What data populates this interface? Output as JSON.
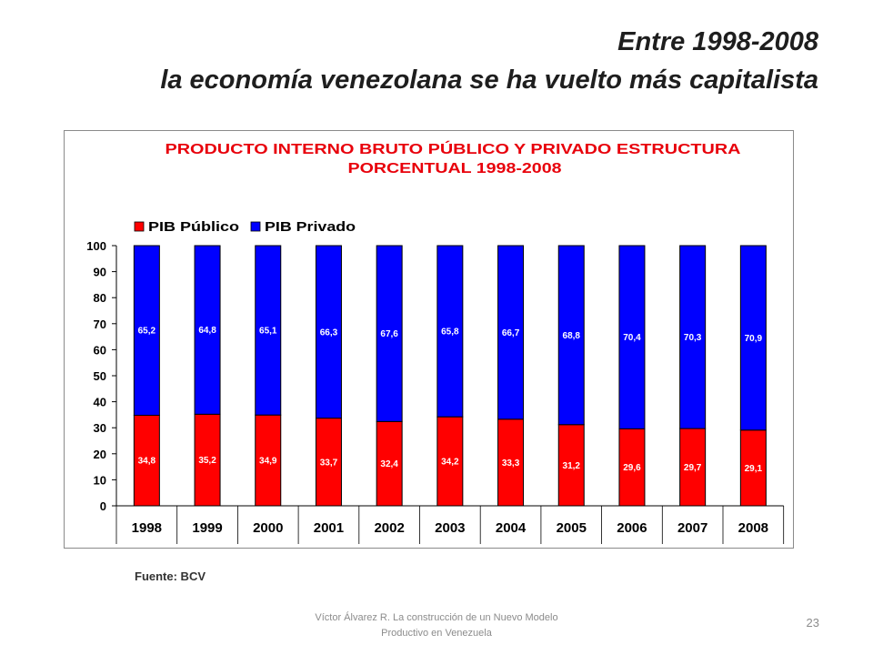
{
  "slide": {
    "title_line1": "Entre 1998-2008",
    "title_line2": "la economía venezolana se ha vuelto más capitalista",
    "source": "Fuente: BCV",
    "footer_line1": "Víctor Álvarez R. La construcción de un Nuevo Modelo",
    "footer_line2": "Productivo en Venezuela",
    "page_number": "23"
  },
  "chart_data": {
    "type": "bar",
    "stacked": true,
    "title_lines": [
      "PRODUCTO INTERNO BRUTO PÚBLICO Y PRIVADO ESTRUCTURA",
      "PORCENTUAL 1998-2008"
    ],
    "title_color": "#e8000b",
    "categories": [
      "1998",
      "1999",
      "2000",
      "2001",
      "2002",
      "2003",
      "2004",
      "2005",
      "2006",
      "2007",
      "2008"
    ],
    "series": [
      {
        "name": "PIB Público",
        "color": "#ff0000",
        "values": [
          34.8,
          35.2,
          34.9,
          33.7,
          32.4,
          34.2,
          33.3,
          31.2,
          29.6,
          29.7,
          29.1
        ],
        "labels": [
          "34,8",
          "35,2",
          "34,9",
          "33,7",
          "32,4",
          "34,2",
          "33,3",
          "31,2",
          "29,6",
          "29,7",
          "29,1"
        ]
      },
      {
        "name": "PIB Privado",
        "color": "#0000ff",
        "values": [
          65.2,
          64.8,
          65.1,
          66.3,
          67.6,
          65.8,
          66.7,
          68.8,
          70.4,
          70.3,
          70.9
        ],
        "labels": [
          "65,2",
          "64,8",
          "65,1",
          "66,3",
          "67,6",
          "65,8",
          "66,7",
          "68,8",
          "70,4",
          "70,3",
          "70,9"
        ]
      }
    ],
    "ylim": [
      0,
      100
    ],
    "yticks": [
      0,
      10,
      20,
      30,
      40,
      50,
      60,
      70,
      80,
      90,
      100
    ],
    "grid": false,
    "legend": "top-left"
  }
}
